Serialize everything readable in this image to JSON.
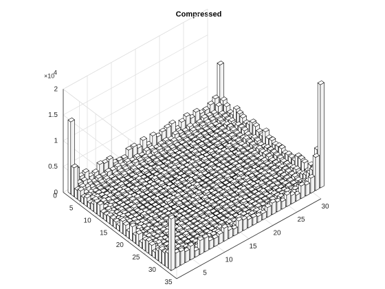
{
  "chart_data": {
    "type": "bar3",
    "title": "Compressed",
    "xlabel": "",
    "ylabel": "",
    "zlabel": "",
    "x_range": [
      0,
      35
    ],
    "y_range": [
      0,
      30
    ],
    "z_range": [
      0,
      20000
    ],
    "z_multiplier_label": "×10",
    "z_multiplier_exponent": "4",
    "x_ticks": [
      "0",
      "5",
      "10",
      "15",
      "20",
      "25",
      "30",
      "35"
    ],
    "x_tick_values": [
      0,
      5,
      10,
      15,
      20,
      25,
      30,
      35
    ],
    "y_ticks": [
      "5",
      "10",
      "15",
      "20",
      "25",
      "30"
    ],
    "y_tick_values": [
      5,
      10,
      15,
      20,
      25,
      30
    ],
    "z_ticks": [
      "0",
      "0.5",
      "1",
      "1.5",
      "2"
    ],
    "z_tick_values": [
      0,
      5000,
      10000,
      15000,
      20000
    ],
    "grid": true,
    "bar_color": "#ffffff",
    "edge_color": "#000000",
    "grid_rows": 32,
    "grid_cols": 32,
    "corner_peaks": [
      {
        "x": 1,
        "y": 1,
        "value": 14000
      },
      {
        "x": 1,
        "y": 32,
        "value": 9000
      },
      {
        "x": 32,
        "y": 1,
        "value": 10000
      },
      {
        "x": 32,
        "y": 32,
        "value": 20000
      }
    ],
    "edge_level": 2000,
    "interior_level": 300
  }
}
